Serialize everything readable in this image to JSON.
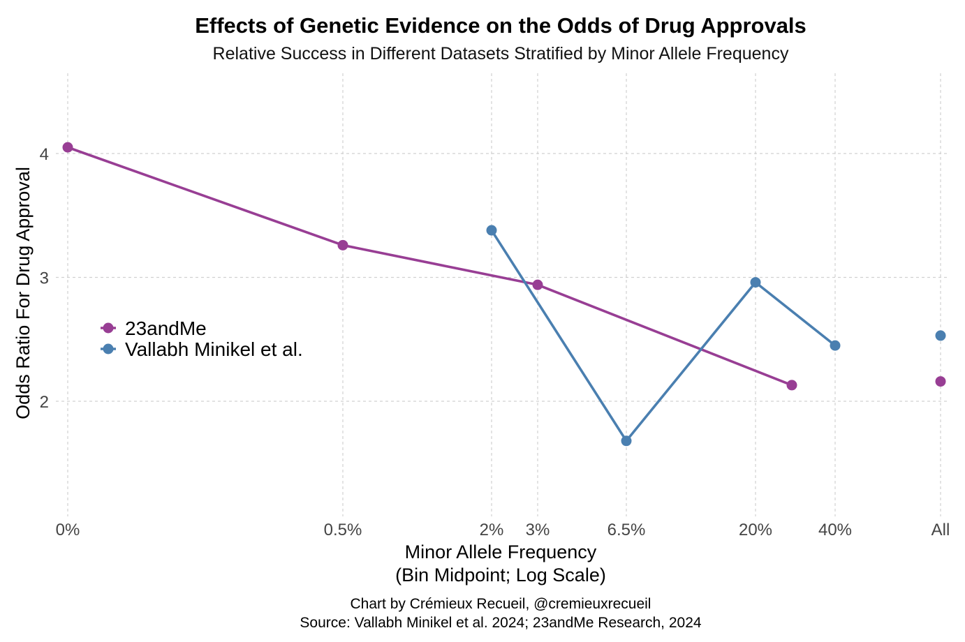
{
  "chart_data": {
    "type": "line",
    "title": "Effects of Genetic Evidence on the Odds of Drug Approvals",
    "subtitle": "Relative Success in Different Datasets Stratified by Minor Allele Frequency",
    "xlabel_line1": "Minor Allele Frequency",
    "xlabel_line2": "(Bin Midpoint; Log Scale)",
    "ylabel": "Odds Ratio For Drug Approval",
    "x_ticks": [
      "0%",
      "0.5%",
      "2%",
      "3%",
      "6.5%",
      "20%",
      "40%",
      "All"
    ],
    "y_ticks": [
      2,
      3,
      4
    ],
    "ylim": [
      1.1,
      4.7
    ],
    "x_scale": "log",
    "grid": true,
    "legend_position": "left",
    "series": [
      {
        "name": "23andMe",
        "color": "#983E94",
        "points": [
          {
            "x": "0%",
            "y": 4.05
          },
          {
            "x": "0.5%",
            "y": 3.26
          },
          {
            "x": "3%",
            "y": 2.94
          },
          {
            "x": "~27%",
            "y": 2.13
          },
          {
            "x": "All",
            "y": 2.16
          }
        ],
        "connected_through": 4
      },
      {
        "name": "Vallabh Minikel et al.",
        "color": "#4A7FB0",
        "points": [
          {
            "x": "2%",
            "y": 3.38
          },
          {
            "x": "6.5%",
            "y": 1.68
          },
          {
            "x": "20%",
            "y": 2.96
          },
          {
            "x": "40%",
            "y": 2.45
          },
          {
            "x": "All",
            "y": 2.53
          }
        ],
        "connected_through": 4
      }
    ]
  },
  "caption": {
    "line1": "Chart by Crémieux Recueil, @cremieuxrecueil",
    "line2": "Source: Vallabh Minikel et al. 2024; 23andMe Research, 2024"
  }
}
